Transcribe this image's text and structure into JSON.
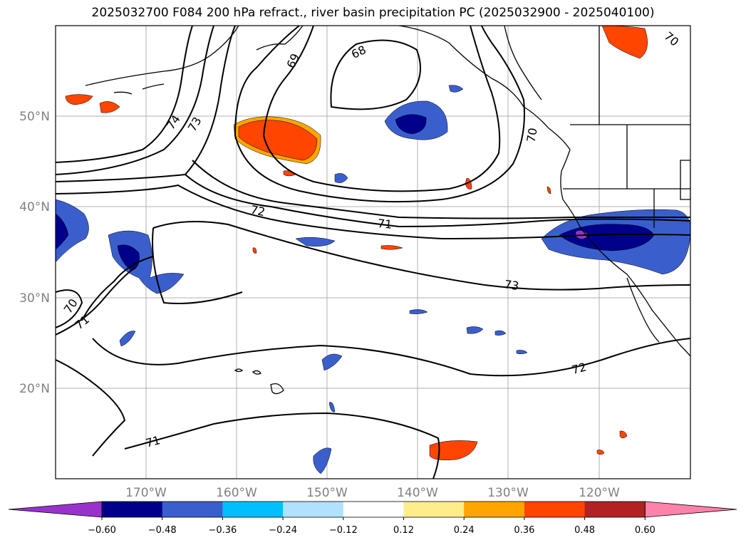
{
  "title": "2025032700 F084 200 hPa refract., river basin precipitation PC (2025032900 - 2025040100)",
  "map": {
    "lat_labels": [
      "50°N",
      "40°N",
      "30°N",
      "20°N"
    ],
    "lon_labels": [
      "170°W",
      "160°W",
      "150°W",
      "140°W",
      "130°W",
      "120°W"
    ],
    "contour_labels": [
      "74",
      "73",
      "69",
      "68",
      "70",
      "72",
      "71",
      "73",
      "70",
      "71",
      "72",
      "71",
      "70"
    ]
  },
  "colorbar": {
    "colors": [
      "#9932cc",
      "#00008b",
      "#3a5fcd",
      "#00bfff",
      "#b0e2ff",
      "#ffffff",
      "#ffec8b",
      "#ffa500",
      "#ff4500",
      "#b22222",
      "#ff82ab"
    ],
    "ticks": [
      "−0.60",
      "−0.48",
      "−0.36",
      "−0.24",
      "−0.12",
      "0.12",
      "0.24",
      "0.36",
      "0.48",
      "0.60"
    ]
  }
}
